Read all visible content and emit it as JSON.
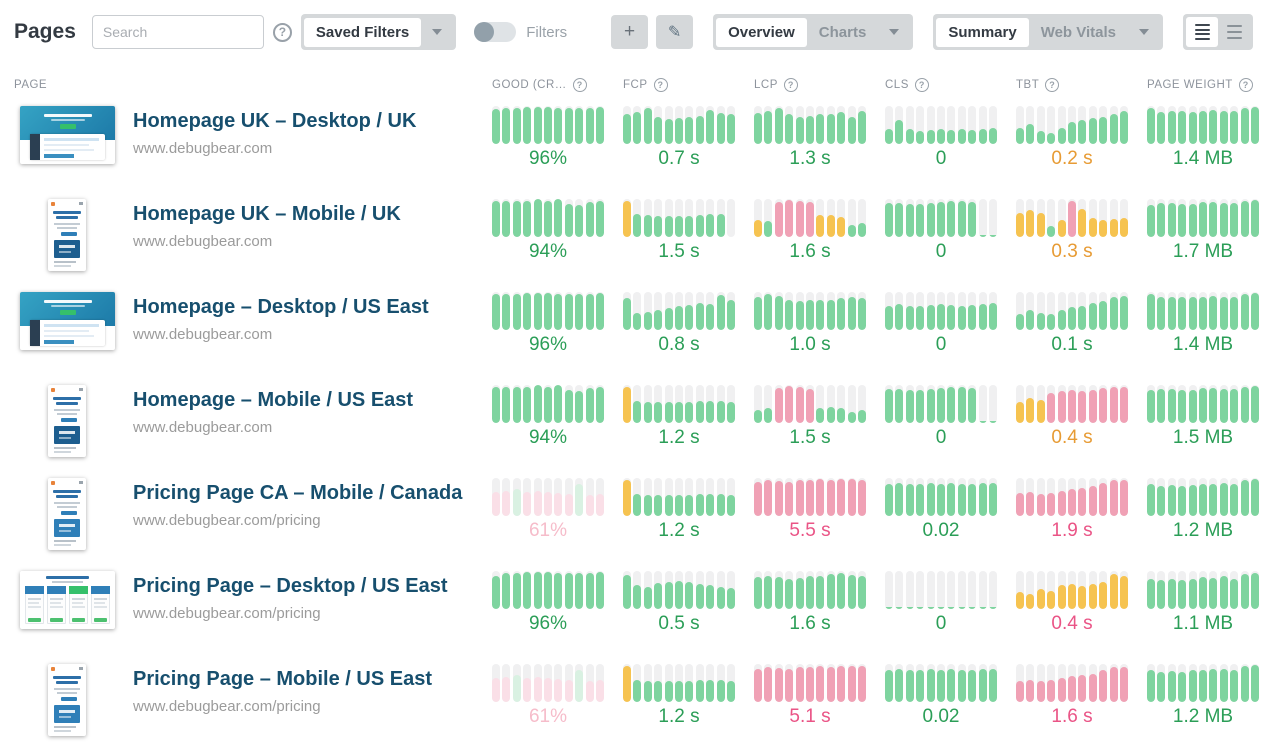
{
  "topbar": {
    "title": "Pages",
    "search": {
      "placeholder": "Search"
    },
    "saved_filters": {
      "label": "Saved Filters"
    },
    "filters_toggle": {
      "label": "Filters",
      "on": false
    },
    "add_label": "+",
    "edit_icon": "✎",
    "view_segment": {
      "options": [
        "Overview",
        "Charts"
      ],
      "selected": "Overview"
    },
    "detail_segment": {
      "options": [
        "Summary",
        "Web Vitals"
      ],
      "selected": "Summary"
    }
  },
  "table_header": {
    "page": "PAGE"
  },
  "colors": {
    "green_bar": "#7ed49f",
    "orange_bar": "#f6c350",
    "pink_bar": "#f0a1b5",
    "faded_green_bar": "#d9f1e2",
    "faded_pink_bar": "#fadfe7",
    "track": "#f0f0f1",
    "green_text": "#2b9e57",
    "orange_text": "#e79b34",
    "pink_text": "#ea5486",
    "faded_pink_text": "#f6bcca"
  },
  "chart_data": {
    "type": "table",
    "note": "each metric cell is an 11-bar history histogram; bars encoded as height%+tone (g green, o orange, p pink, fg faded-green, fp faded-pink, e empty)",
    "columns": [
      {
        "key": "good",
        "label": "GOOD (CR…",
        "help": true
      },
      {
        "key": "fcp",
        "label": "FCP",
        "help": true
      },
      {
        "key": "lcp",
        "label": "LCP",
        "help": true
      },
      {
        "key": "cls",
        "label": "CLS",
        "help": true
      },
      {
        "key": "tbt",
        "label": "TBT",
        "help": true
      },
      {
        "key": "page_weight",
        "label": "PAGE WEIGHT",
        "help": true
      }
    ],
    "rows": [
      {
        "title": "Homepage UK – Desktop / UK",
        "url": "www.debugbear.com",
        "thumb": "desktop-home",
        "metrics": [
          {
            "value": "96%",
            "tone": "green",
            "bars": [
              "92g",
              "95g",
              "96g",
              "97g",
              "98g",
              "97g",
              "96g",
              "95g",
              "94g",
              "95g",
              "97g"
            ]
          },
          {
            "value": "0.7 s",
            "tone": "green",
            "bars": [
              "80g",
              "85g",
              "95g",
              "70g",
              "65g",
              "68g",
              "70g",
              "74g",
              "90g",
              "82g",
              "78g"
            ]
          },
          {
            "value": "1.3 s",
            "tone": "green",
            "bars": [
              "82g",
              "88g",
              "96g",
              "78g",
              "72g",
              "75g",
              "78g",
              "80g",
              "84g",
              "72g",
              "86g"
            ]
          },
          {
            "value": "0",
            "tone": "green",
            "bars": [
              "40g",
              "62g",
              "40g",
              "35g",
              "38g",
              "40g",
              "38g",
              "40g",
              "37g",
              "40g",
              "42g"
            ]
          },
          {
            "value": "0.2 s",
            "tone": "orange",
            "bars": [
              "42g",
              "52g",
              "35g",
              "30g",
              "42g",
              "58g",
              "62g",
              "68g",
              "72g",
              "80g",
              "88g"
            ]
          },
          {
            "value": "1.4 MB",
            "tone": "green",
            "bars": [
              "95g",
              "85g",
              "88g",
              "86g",
              "85g",
              "88g",
              "90g",
              "88g",
              "86g",
              "96g",
              "98g"
            ]
          }
        ]
      },
      {
        "title": "Homepage UK – Mobile / UK",
        "url": "www.debugbear.com",
        "thumb": "mobile-home",
        "metrics": [
          {
            "value": "94%",
            "tone": "green",
            "bars": [
              "95g",
              "95g",
              "94g",
              "96g",
              "99g",
              "96g",
              "99g",
              "86g",
              "85g",
              "92g",
              "96g"
            ]
          },
          {
            "value": "1.5 s",
            "tone": "green",
            "bars": [
              "96o",
              "60g",
              "57g",
              "55g",
              "54g",
              "54g",
              "54g",
              "58g",
              "60g",
              "60g",
              "0e"
            ]
          },
          {
            "value": "1.6 s",
            "tone": "green",
            "bars": [
              "45o",
              "42g",
              "92p",
              "98p",
              "96p",
              "92p",
              "58o",
              "58o",
              "52o",
              "32g",
              "38g"
            ]
          },
          {
            "value": "0",
            "tone": "green",
            "bars": [
              "90g",
              "90g",
              "88g",
              "88g",
              "90g",
              "92g",
              "95g",
              "95g",
              "92g",
              "4g",
              "6g"
            ]
          },
          {
            "value": "0.3 s",
            "tone": "orange",
            "bars": [
              "62o",
              "70o",
              "64o",
              "30g",
              "46o",
              "94p",
              "74o",
              "50o",
              "45o",
              "48o",
              "50o"
            ]
          },
          {
            "value": "1.7 MB",
            "tone": "green",
            "bars": [
              "85g",
              "90g",
              "90g",
              "88g",
              "86g",
              "92g",
              "92g",
              "90g",
              "90g",
              "96g",
              "98g"
            ]
          }
        ]
      },
      {
        "title": "Homepage – Desktop / US East",
        "url": "www.debugbear.com",
        "thumb": "desktop-home",
        "metrics": [
          {
            "value": "96%",
            "tone": "green",
            "bars": [
              "94g",
              "96g",
              "95g",
              "97g",
              "98g",
              "97g",
              "96g",
              "95g",
              "94g",
              "96g",
              "97g"
            ]
          },
          {
            "value": "0.8 s",
            "tone": "green",
            "bars": [
              "85g",
              "45g",
              "48g",
              "52g",
              "58g",
              "62g",
              "66g",
              "70g",
              "68g",
              "92g",
              "78g"
            ]
          },
          {
            "value": "1.0 s",
            "tone": "green",
            "bars": [
              "88g",
              "94g",
              "90g",
              "78g",
              "76g",
              "78g",
              "80g",
              "78g",
              "84g",
              "88g",
              "84g"
            ]
          },
          {
            "value": "0",
            "tone": "green",
            "bars": [
              "62g",
              "68g",
              "64g",
              "62g",
              "65g",
              "68g",
              "66g",
              "63g",
              "66g",
              "68g",
              "70g"
            ]
          },
          {
            "value": "0.1 s",
            "tone": "green",
            "bars": [
              "42g",
              "52g",
              "46g",
              "42g",
              "52g",
              "60g",
              "64g",
              "70g",
              "76g",
              "86g",
              "90g"
            ]
          },
          {
            "value": "1.4 MB",
            "tone": "green",
            "bars": [
              "94g",
              "86g",
              "88g",
              "86g",
              "86g",
              "88g",
              "90g",
              "88g",
              "86g",
              "95g",
              "97g"
            ]
          }
        ]
      },
      {
        "title": "Homepage – Mobile / US East",
        "url": "www.debugbear.com",
        "thumb": "mobile-home",
        "metrics": [
          {
            "value": "94%",
            "tone": "green",
            "bars": [
              "95g",
              "95g",
              "94g",
              "96g",
              "99g",
              "96g",
              "99g",
              "86g",
              "85g",
              "92g",
              "96g"
            ]
          },
          {
            "value": "1.2 s",
            "tone": "green",
            "bars": [
              "96o",
              "58g",
              "55g",
              "54g",
              "54g",
              "55g",
              "54g",
              "57g",
              "58g",
              "58g",
              "55g"
            ]
          },
          {
            "value": "1.5 s",
            "tone": "green",
            "bars": [
              "34g",
              "40g",
              "92p",
              "98p",
              "94p",
              "90p",
              "40g",
              "42g",
              "40g",
              "30g",
              "34g"
            ]
          },
          {
            "value": "0",
            "tone": "green",
            "bars": [
              "90g",
              "90g",
              "88g",
              "88g",
              "90g",
              "92g",
              "95g",
              "95g",
              "92g",
              "4g",
              "6g"
            ]
          },
          {
            "value": "0.4 s",
            "tone": "orange",
            "bars": [
              "55o",
              "65o",
              "60o",
              "78p",
              "84p",
              "88p",
              "84p",
              "87p",
              "91p",
              "95p",
              "94p"
            ]
          },
          {
            "value": "1.5 MB",
            "tone": "green",
            "bars": [
              "88g",
              "90g",
              "89g",
              "88g",
              "87g",
              "92g",
              "92g",
              "90g",
              "90g",
              "96g",
              "98g"
            ]
          }
        ]
      },
      {
        "title": "Pricing Page CA – Mobile / Canada",
        "url": "www.debugbear.com/pricing",
        "thumb": "pricing-mobile",
        "metrics": [
          {
            "value": "61%",
            "tone": "faded-pink",
            "bars": [
              "62fp",
              "66fp",
              "70fg",
              "64fp",
              "66fp",
              "64fp",
              "61fp",
              "58fp",
              "84fg",
              "54fp",
              "58fp"
            ]
          },
          {
            "value": "1.2 s",
            "tone": "green",
            "bars": [
              "96o",
              "58g",
              "56g",
              "55g",
              "54g",
              "55g",
              "55g",
              "57g",
              "58g",
              "58g",
              "56g"
            ]
          },
          {
            "value": "5.5 s",
            "tone": "pink",
            "bars": [
              "90p",
              "94p",
              "92p",
              "90p",
              "94p",
              "95p",
              "97p",
              "95p",
              "97p",
              "97p",
              "95p"
            ]
          },
          {
            "value": "0.02",
            "tone": "green",
            "bars": [
              "85g",
              "87g",
              "85g",
              "84g",
              "87g",
              "85g",
              "88g",
              "85g",
              "85g",
              "88g",
              "86g"
            ]
          },
          {
            "value": "1.9 s",
            "tone": "pink",
            "bars": [
              "60p",
              "62p",
              "58p",
              "60p",
              "66p",
              "70p",
              "73p",
              "78p",
              "86p",
              "95p",
              "94p"
            ]
          },
          {
            "value": "1.2 MB",
            "tone": "green",
            "bars": [
              "85g",
              "80g",
              "82g",
              "80g",
              "82g",
              "85g",
              "85g",
              "88g",
              "85g",
              "95g",
              "97g"
            ]
          }
        ]
      },
      {
        "title": "Pricing Page – Desktop / US East",
        "url": "www.debugbear.com/pricing",
        "thumb": "pricing-desktop",
        "metrics": [
          {
            "value": "96%",
            "tone": "green",
            "bars": [
              "88g",
              "95g",
              "96g",
              "97g",
              "98g",
              "97g",
              "96g",
              "95g",
              "95g",
              "96g",
              "97g"
            ]
          },
          {
            "value": "0.5 s",
            "tone": "green",
            "bars": [
              "90g",
              "64g",
              "58g",
              "68g",
              "72g",
              "74g",
              "70g",
              "66g",
              "62g",
              "58g",
              "55g"
            ]
          },
          {
            "value": "1.6 s",
            "tone": "green",
            "bars": [
              "85g",
              "88g",
              "85g",
              "80g",
              "82g",
              "86g",
              "88g",
              "92g",
              "95g",
              "90g",
              "87g"
            ]
          },
          {
            "value": "0",
            "tone": "green",
            "bars": [
              "4g",
              "4g",
              "4g",
              "4g",
              "4g",
              "4g",
              "4g",
              "4g",
              "4g",
              "4g",
              "4g"
            ]
          },
          {
            "value": "0.4 s",
            "tone": "pink",
            "bars": [
              "46o",
              "40o",
              "52o",
              "48o",
              "62o",
              "66o",
              "60o",
              "66o",
              "70o",
              "92o",
              "86o"
            ]
          },
          {
            "value": "1.1 MB",
            "tone": "green",
            "bars": [
              "80g",
              "76g",
              "78g",
              "76g",
              "80g",
              "85g",
              "82g",
              "86g",
              "80g",
              "93g",
              "95g"
            ]
          }
        ]
      },
      {
        "title": "Pricing Page – Mobile / US East",
        "url": "www.debugbear.com/pricing",
        "thumb": "pricing-mobile",
        "metrics": [
          {
            "value": "61%",
            "tone": "faded-pink",
            "bars": [
              "62fp",
              "66fp",
              "70fg",
              "64fp",
              "66fp",
              "64fp",
              "61fp",
              "58fp",
              "84fg",
              "54fp",
              "58fp"
            ]
          },
          {
            "value": "1.2 s",
            "tone": "green",
            "bars": [
              "96o",
              "58g",
              "56g",
              "55g",
              "54g",
              "55g",
              "55g",
              "57g",
              "58g",
              "58g",
              "56g"
            ]
          },
          {
            "value": "5.1 s",
            "tone": "pink",
            "bars": [
              "88p",
              "92p",
              "90p",
              "88p",
              "92p",
              "93p",
              "95p",
              "93p",
              "96p",
              "96p",
              "94p"
            ]
          },
          {
            "value": "0.02",
            "tone": "green",
            "bars": [
              "85g",
              "87g",
              "85g",
              "84g",
              "87g",
              "85g",
              "88g",
              "85g",
              "85g",
              "88g",
              "86g"
            ]
          },
          {
            "value": "1.6 s",
            "tone": "pink",
            "bars": [
              "55p",
              "58p",
              "55p",
              "58p",
              "62p",
              "68p",
              "70p",
              "75p",
              "85p",
              "93p",
              "91p"
            ]
          },
          {
            "value": "1.2 MB",
            "tone": "green",
            "bars": [
              "85g",
              "80g",
              "82g",
              "80g",
              "83g",
              "85g",
              "86g",
              "88g",
              "85g",
              "95g",
              "97g"
            ]
          }
        ]
      }
    ]
  }
}
